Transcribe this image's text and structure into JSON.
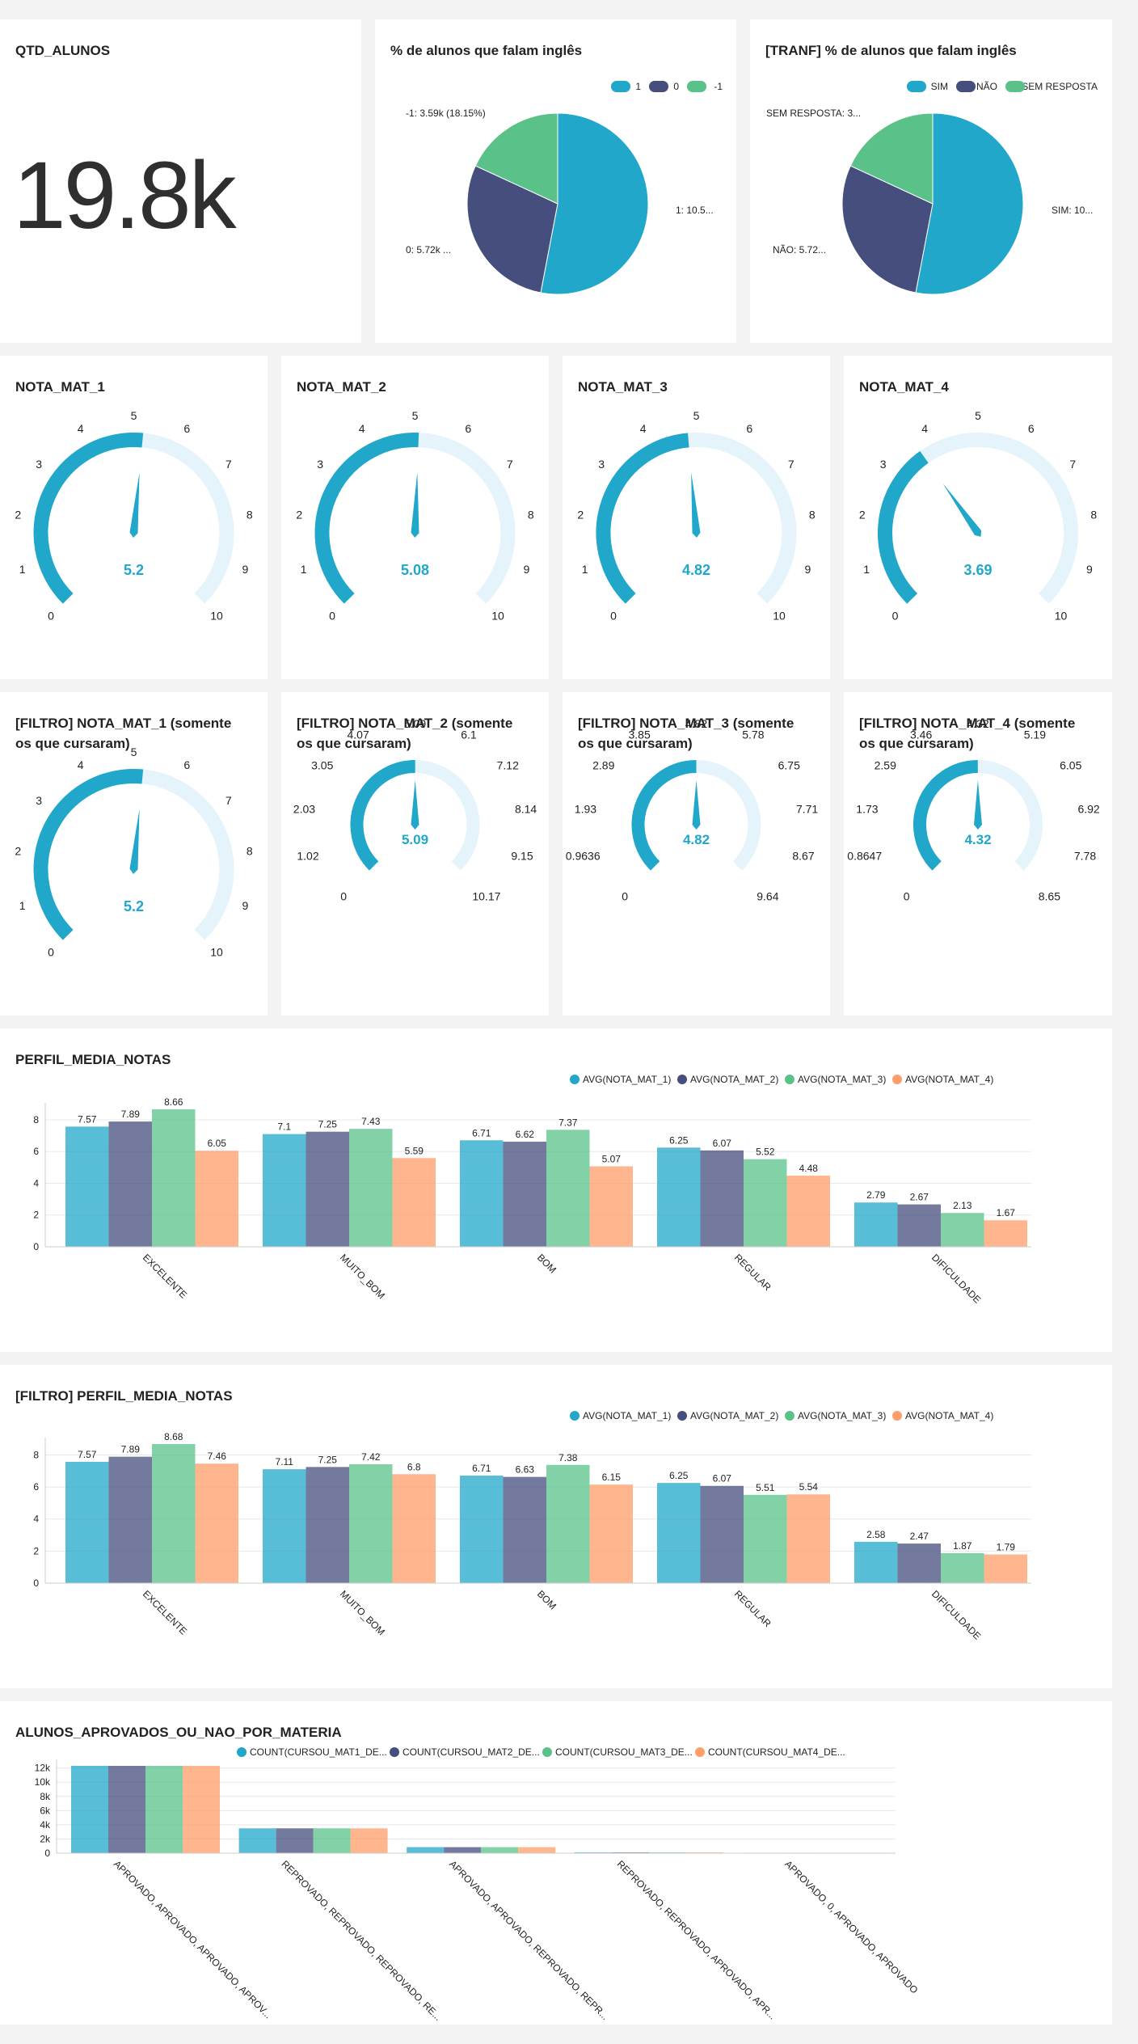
{
  "colors": {
    "blue": "#20a7c9",
    "navy": "#454e7c",
    "green": "#5ac189",
    "orange": "#ff9e6a",
    "gauge_track": "#e4f4fa"
  },
  "qtd": {
    "title": "QTD_ALUNOS",
    "value": "19.8k"
  },
  "pie1": {
    "title": "% de alunos que falam inglês",
    "legend": [
      "1",
      "0",
      "-1"
    ],
    "labels": [
      "1: 10.5...",
      "0: 5.72k ...",
      "-1: 3.59k (18.15%)"
    ]
  },
  "pie2": {
    "title": "[TRANF] % de alunos que falam inglês",
    "legend": [
      "SIM",
      "NÃO",
      "SEM RESPOSTA"
    ],
    "labels": [
      "SIM: 10...",
      "NÃO: 5.72...",
      "SEM RESPOSTA: 3..."
    ]
  },
  "gauges": [
    {
      "title": "NOTA_MAT_1",
      "value": 5.2,
      "value_label": "5.2",
      "max": 10,
      "ticks": [
        "0",
        "1",
        "2",
        "3",
        "4",
        "5",
        "6",
        "7",
        "8",
        "9",
        "10"
      ]
    },
    {
      "title": "NOTA_MAT_2",
      "value": 5.08,
      "value_label": "5.08",
      "max": 10,
      "ticks": [
        "0",
        "1",
        "2",
        "3",
        "4",
        "5",
        "6",
        "7",
        "8",
        "9",
        "10"
      ]
    },
    {
      "title": "NOTA_MAT_3",
      "value": 4.82,
      "value_label": "4.82",
      "max": 10,
      "ticks": [
        "0",
        "1",
        "2",
        "3",
        "4",
        "5",
        "6",
        "7",
        "8",
        "9",
        "10"
      ]
    },
    {
      "title": "NOTA_MAT_4",
      "value": 3.69,
      "value_label": "3.69",
      "max": 10,
      "ticks": [
        "0",
        "1",
        "2",
        "3",
        "4",
        "5",
        "6",
        "7",
        "8",
        "9",
        "10"
      ]
    },
    {
      "title": "[FILTRO] NOTA_MAT_1 (somente os que cursaram)",
      "value": 5.2,
      "value_label": "5.2",
      "max": 10,
      "ticks": [
        "0",
        "1",
        "2",
        "3",
        "4",
        "5",
        "6",
        "7",
        "8",
        "9",
        "10"
      ]
    },
    {
      "title": "[FILTRO] NOTA_MAT_2 (somente os que cursaram)",
      "value": 5.09,
      "value_label": "5.09",
      "max": 10.17,
      "ticks": [
        "0",
        "1.02",
        "2.03",
        "3.05",
        "4.07",
        "5.09",
        "6.1",
        "7.12",
        "8.14",
        "9.15",
        "10.17"
      ]
    },
    {
      "title": "[FILTRO] NOTA_MAT_3 (somente os que cursaram)",
      "value": 4.82,
      "value_label": "4.82",
      "max": 9.64,
      "ticks": [
        "0",
        "0.9636",
        "1.93",
        "2.89",
        "3.85",
        "4.82",
        "5.78",
        "6.75",
        "7.71",
        "8.67",
        "9.64"
      ]
    },
    {
      "title": "[FILTRO] NOTA_MAT_4 (somente os que cursaram)",
      "value": 4.32,
      "value_label": "4.32",
      "max": 8.65,
      "ticks": [
        "0",
        "0.8647",
        "1.73",
        "2.59",
        "3.46",
        "4.32",
        "5.19",
        "6.05",
        "6.92",
        "7.78",
        "8.65"
      ]
    }
  ],
  "perfil_titles": [
    "PERFIL_MEDIA_NOTAS",
    "[FILTRO] PERFIL_MEDIA_NOTAS"
  ],
  "aprov_title": "ALUNOS_APROVADOS_OU_NAO_POR_MATERIA",
  "chart_data": [
    {
      "type": "pie",
      "title": "% de alunos que falam inglês",
      "categories": [
        "1",
        "0",
        "-1"
      ],
      "values": [
        10500,
        5720,
        3590
      ],
      "legend": "top-right"
    },
    {
      "type": "pie",
      "title": "[TRANF] % de alunos que falam inglês",
      "categories": [
        "SIM",
        "NÃO",
        "SEM RESPOSTA"
      ],
      "values": [
        10500,
        5720,
        3590
      ],
      "legend": "top-right"
    },
    {
      "type": "bar",
      "title": "PERFIL_MEDIA_NOTAS",
      "categories": [
        "EXCELENTE",
        "MUITO_BOM",
        "BOM",
        "REGULAR",
        "DIFICULDADE"
      ],
      "series": [
        {
          "name": "AVG(NOTA_MAT_1)",
          "values": [
            7.57,
            7.1,
            6.71,
            6.25,
            2.79
          ]
        },
        {
          "name": "AVG(NOTA_MAT_2)",
          "values": [
            7.89,
            7.25,
            6.62,
            6.07,
            2.67
          ]
        },
        {
          "name": "AVG(NOTA_MAT_3)",
          "values": [
            8.66,
            7.43,
            7.37,
            5.52,
            2.13
          ]
        },
        {
          "name": "AVG(NOTA_MAT_4)",
          "values": [
            6.05,
            5.59,
            5.07,
            4.48,
            1.67
          ]
        }
      ],
      "yticks": [
        "0",
        "2",
        "4",
        "6",
        "8"
      ],
      "ylim": [
        0,
        8.66
      ],
      "grid": true,
      "legend": "top-right"
    },
    {
      "type": "bar",
      "title": "[FILTRO] PERFIL_MEDIA_NOTAS",
      "categories": [
        "EXCELENTE",
        "MUITO_BOM",
        "BOM",
        "REGULAR",
        "DIFICULDADE"
      ],
      "series": [
        {
          "name": "AVG(NOTA_MAT_1)",
          "values": [
            7.57,
            7.11,
            6.71,
            6.25,
            2.58
          ]
        },
        {
          "name": "AVG(NOTA_MAT_2)",
          "values": [
            7.89,
            7.25,
            6.63,
            6.07,
            2.47
          ]
        },
        {
          "name": "AVG(NOTA_MAT_3)",
          "values": [
            8.68,
            7.42,
            7.38,
            5.51,
            1.87
          ]
        },
        {
          "name": "AVG(NOTA_MAT_4)",
          "values": [
            7.46,
            6.8,
            6.15,
            5.54,
            1.79
          ]
        }
      ],
      "yticks": [
        "0",
        "2",
        "4",
        "6",
        "8"
      ],
      "ylim": [
        0,
        8.68
      ],
      "grid": true,
      "legend": "top-right"
    },
    {
      "type": "bar",
      "title": "ALUNOS_APROVADOS_OU_NAO_POR_MATERIA",
      "categories": [
        "APROVADO, APROVADO, APROVADO, APROV...",
        "REPROVADO, REPROVADO, REPROVADO, RE...",
        "APROVADO, APROVADO, REPROVADO, REPR...",
        "REPROVADO, REPROVADO, APROVADO, APR...",
        "APROVADO, 0, APROVADO, APROVADO"
      ],
      "series": [
        {
          "name": "COUNT(CURSOU_MAT1_DE...",
          "values": [
            12300,
            3500,
            850,
            120,
            60
          ]
        },
        {
          "name": "COUNT(CURSOU_MAT2_DE...",
          "values": [
            12300,
            3500,
            850,
            120,
            60
          ]
        },
        {
          "name": "COUNT(CURSOU_MAT3_DE...",
          "values": [
            12300,
            3500,
            850,
            120,
            60
          ]
        },
        {
          "name": "COUNT(CURSOU_MAT4_DE...",
          "values": [
            12300,
            3500,
            850,
            120,
            60
          ]
        }
      ],
      "yticks": [
        "0",
        "2k",
        "4k",
        "6k",
        "8k",
        "10k",
        "12k"
      ],
      "ylim": [
        0,
        12300
      ],
      "grid": true,
      "legend": "top"
    }
  ]
}
